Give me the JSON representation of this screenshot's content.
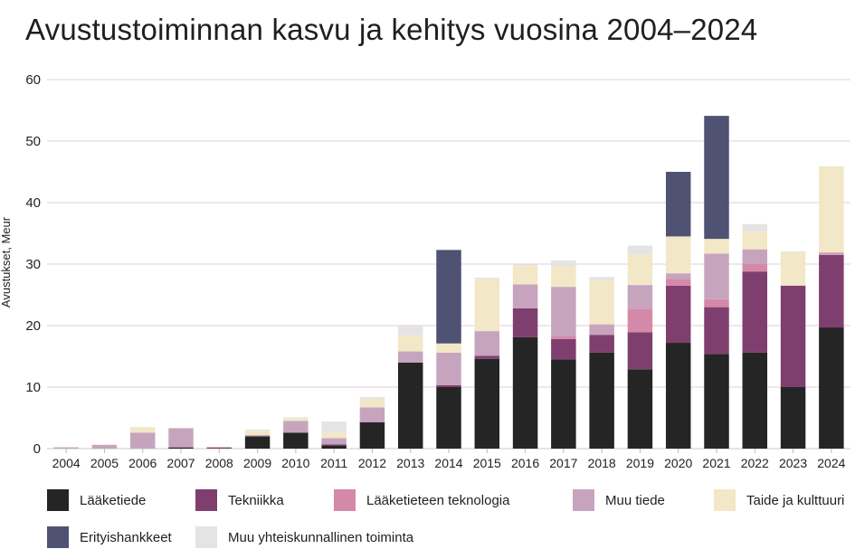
{
  "chart_data": {
    "type": "bar",
    "stacked": true,
    "title": "Avustustoiminnan kasvu ja kehitys vuosina 2004–2024",
    "ylabel": "Avustukset, Meur",
    "xlabel": "",
    "ylim": [
      0,
      60
    ],
    "yticks": [
      0,
      10,
      20,
      30,
      40,
      50,
      60
    ],
    "grid": true,
    "legend_position": "bottom",
    "categories": [
      "2004",
      "2005",
      "2006",
      "2007",
      "2008",
      "2009",
      "2010",
      "2011",
      "2012",
      "2013",
      "2014",
      "2015",
      "2016",
      "2017",
      "2018",
      "2019",
      "2020",
      "2021",
      "2022",
      "2023",
      "2024"
    ],
    "series": [
      {
        "name": "Lääketiede",
        "color": "#252525",
        "values": [
          0,
          0,
          0,
          0.2,
          0,
          2.0,
          2.6,
          0.5,
          4.3,
          14.0,
          10.0,
          14.6,
          18.1,
          14.5,
          15.6,
          12.9,
          17.2,
          15.4,
          15.6,
          10.0,
          19.7
        ]
      },
      {
        "name": "Tekniikka",
        "color": "#7f3f6e",
        "values": [
          0,
          0,
          0,
          0,
          0.2,
          0,
          0,
          0.2,
          0,
          0,
          0.3,
          0.5,
          4.7,
          3.3,
          2.9,
          6.0,
          9.3,
          7.6,
          13.2,
          16.5,
          11.8
        ]
      },
      {
        "name": "Lääketieteen teknologia",
        "color": "#d589a8",
        "values": [
          0,
          0,
          0,
          0,
          0,
          0,
          0,
          0,
          0,
          0,
          0,
          0,
          0,
          0.5,
          0,
          3.8,
          1.0,
          1.3,
          1.2,
          0,
          0.1
        ]
      },
      {
        "name": "Muu tiede",
        "color": "#c7a4be",
        "values": [
          0.2,
          0.6,
          2.6,
          3.1,
          0,
          0.2,
          1.9,
          1.0,
          2.4,
          1.8,
          5.3,
          4.0,
          3.9,
          8.0,
          1.7,
          3.9,
          1.0,
          7.4,
          2.4,
          0,
          0.3
        ]
      },
      {
        "name": "Taide ja kulttuuri",
        "color": "#f2e7c6",
        "values": [
          0.1,
          0.1,
          0.9,
          0.1,
          0,
          0.7,
          0.4,
          0.9,
          1.4,
          2.6,
          1.5,
          8.5,
          3.1,
          3.4,
          7.2,
          5.0,
          6.0,
          2.4,
          2.9,
          5.5,
          14.0
        ]
      },
      {
        "name": "Erityishankkeet",
        "color": "#4f5273",
        "values": [
          0,
          0,
          0,
          0,
          0,
          0,
          0,
          0,
          0,
          0,
          15.2,
          0,
          0,
          0,
          0,
          0,
          10.5,
          20.0,
          0,
          0,
          0
        ]
      },
      {
        "name": "Muu yhteiskunnallinen toiminta",
        "color": "#e4e4e4",
        "values": [
          0,
          0,
          0,
          0,
          0,
          0.2,
          0.2,
          1.8,
          0.3,
          1.5,
          0,
          0.2,
          0.1,
          0.9,
          0.5,
          1.4,
          0,
          0,
          1.2,
          0.1,
          0
        ]
      }
    ]
  }
}
